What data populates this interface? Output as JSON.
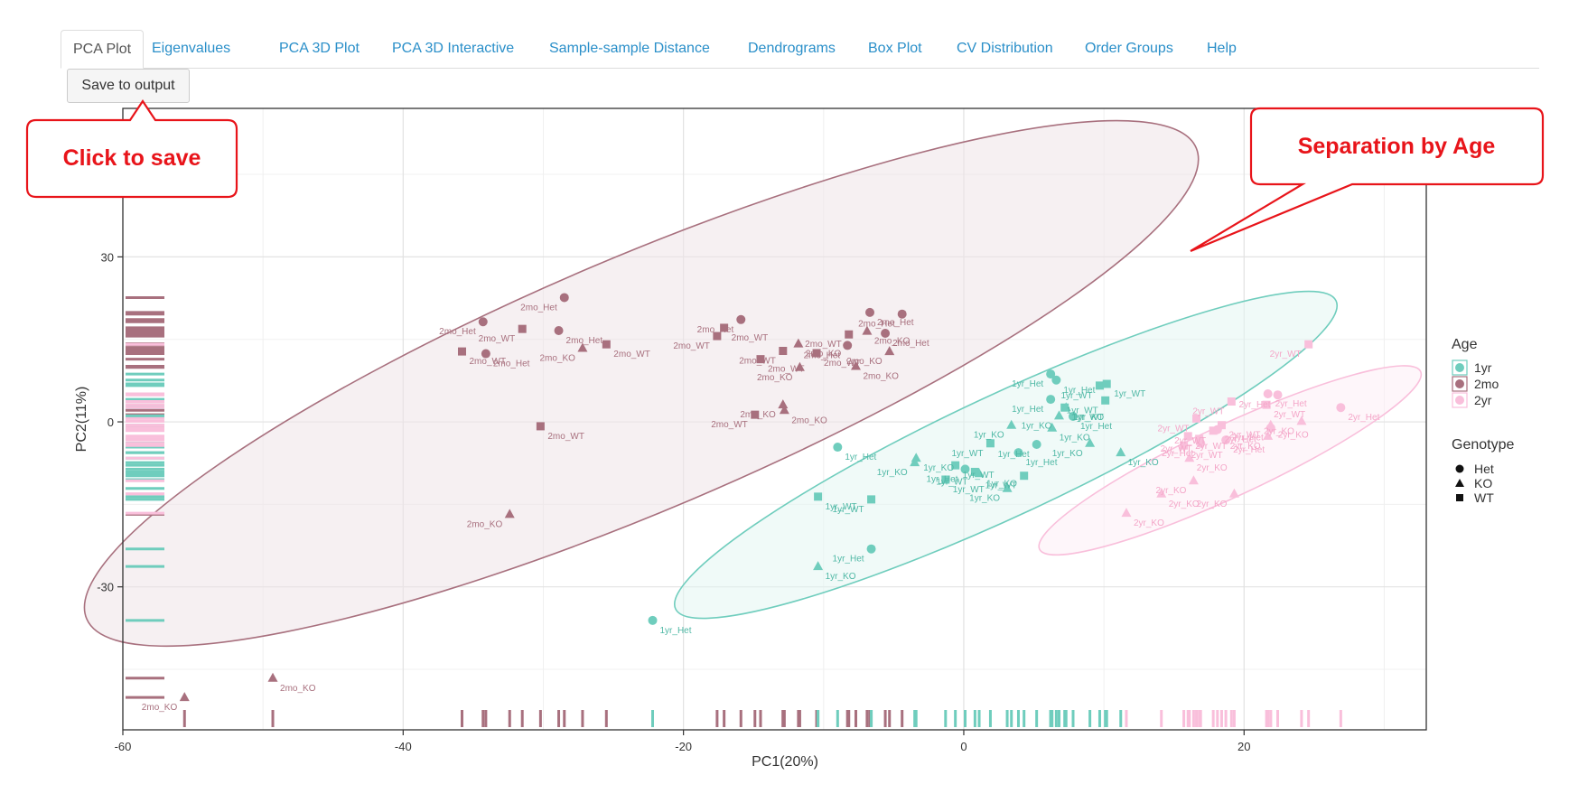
{
  "tabs": [
    {
      "label": "PCA Plot",
      "active": true
    },
    {
      "label": "Eigenvalues"
    },
    {
      "label": "PCA 3D Plot"
    },
    {
      "label": "PCA 3D Interactive"
    },
    {
      "label": "Sample-sample Distance"
    },
    {
      "label": "Dendrograms"
    },
    {
      "label": "Box Plot"
    },
    {
      "label": "CV Distribution"
    },
    {
      "label": "Order Groups"
    },
    {
      "label": "Help"
    }
  ],
  "save_button": {
    "label": "Save to output"
  },
  "callouts": {
    "save": "Click to save",
    "separation": "Separation by Age"
  },
  "colors": {
    "1yr": "#6fcdbd",
    "2mo": "#a8707e",
    "2yr": "#f9bfdb",
    "callout_border": "#e8141a",
    "callout_text": "#e8141a"
  },
  "chart_data": {
    "type": "scatter",
    "title": "",
    "xlabel": "PC1(20%)",
    "ylabel": "PC2(11%)",
    "xlim": [
      -60,
      33
    ],
    "ylim": [
      -56,
      57
    ],
    "xticks": [
      -60,
      -40,
      -20,
      0,
      20
    ],
    "yticks": [
      -30,
      0,
      30
    ],
    "grid": true,
    "legend": {
      "placement": "right",
      "age_title": "Age",
      "age_entries": [
        "1yr",
        "2mo",
        "2yr"
      ],
      "genotype_title": "Genotype",
      "genotype_entries": [
        {
          "label": "Het",
          "shape": "circle"
        },
        {
          "label": "KO",
          "shape": "triangle"
        },
        {
          "label": "WT",
          "shape": "square"
        }
      ]
    },
    "ellipses": [
      {
        "group": "2mo",
        "cx": -23,
        "cy": 7,
        "rx": 43,
        "ry": 23,
        "angle_deg": 23
      },
      {
        "group": "1yr",
        "cx": 3,
        "cy": -6,
        "rx": 26,
        "ry": 11,
        "angle_deg": 25
      },
      {
        "group": "2yr",
        "cx": 19,
        "cy": -7,
        "rx": 15,
        "ry": 6.5,
        "angle_deg": 25
      }
    ],
    "series": [
      {
        "name": "2mo",
        "points": [
          {
            "x": -34.3,
            "y": 18.2,
            "g": "Het",
            "label": "2mo_Het"
          },
          {
            "x": -34.1,
            "y": 12.4,
            "g": "Het",
            "label": "2mo_Het"
          },
          {
            "x": -28.5,
            "y": 22.6,
            "g": "Het",
            "label": "2mo_Het"
          },
          {
            "x": -28.9,
            "y": 16.6,
            "g": "Het",
            "label": "2mo_Het"
          },
          {
            "x": -15.9,
            "y": 18.6,
            "g": "Het",
            "label": "2mo_Het"
          },
          {
            "x": -6.7,
            "y": 19.9,
            "g": "Het",
            "label": "2mo_Het"
          },
          {
            "x": -4.4,
            "y": 19.6,
            "g": "Het",
            "label": "2mo_Het"
          },
          {
            "x": -5.6,
            "y": 16.1,
            "g": "Het",
            "label": "2mo_Het"
          },
          {
            "x": -8.3,
            "y": 13.9,
            "g": "Het",
            "label": "2mo_Het"
          },
          {
            "x": -35.8,
            "y": 12.8,
            "g": "WT",
            "label": "2mo_WT"
          },
          {
            "x": -31.5,
            "y": 16.9,
            "g": "WT",
            "label": "2mo_WT"
          },
          {
            "x": -25.5,
            "y": 14.1,
            "g": "WT",
            "label": "2mo_WT"
          },
          {
            "x": -17.6,
            "y": 15.6,
            "g": "WT",
            "label": "2mo_WT"
          },
          {
            "x": -17.1,
            "y": 17.1,
            "g": "WT",
            "label": "2mo_WT"
          },
          {
            "x": -12.9,
            "y": 12.9,
            "g": "WT",
            "label": "2mo_WT"
          },
          {
            "x": -14.5,
            "y": 11.4,
            "g": "WT",
            "label": "2mo_WT"
          },
          {
            "x": -8.2,
            "y": 15.9,
            "g": "WT",
            "label": "2mo_WT"
          },
          {
            "x": -10.5,
            "y": 12.5,
            "g": "WT",
            "label": "2mo_WT"
          },
          {
            "x": -14.9,
            "y": 1.3,
            "g": "WT",
            "label": "2mo_WT"
          },
          {
            "x": -30.2,
            "y": -0.8,
            "g": "WT",
            "label": "2mo_WT"
          },
          {
            "x": -27.2,
            "y": 13.4,
            "g": "KO",
            "label": "2mo_KO"
          },
          {
            "x": -11.8,
            "y": 14.2,
            "g": "KO",
            "label": "2mo_KO"
          },
          {
            "x": -11.7,
            "y": 9.9,
            "g": "KO",
            "label": "2mo_KO"
          },
          {
            "x": -6.9,
            "y": 16.5,
            "g": "KO",
            "label": "2mo_KO"
          },
          {
            "x": -5.3,
            "y": 12.8,
            "g": "KO",
            "label": "2mo_KO"
          },
          {
            "x": -7.7,
            "y": 10.1,
            "g": "KO",
            "label": "2mo_KO"
          },
          {
            "x": -12.9,
            "y": 3.1,
            "g": "KO",
            "label": "2mo_KO"
          },
          {
            "x": -12.8,
            "y": 2.1,
            "g": "KO",
            "label": "2mo_KO"
          },
          {
            "x": -32.4,
            "y": -16.8,
            "g": "KO",
            "label": "2mo_KO"
          },
          {
            "x": -49.3,
            "y": -46.6,
            "g": "KO",
            "label": "2mo_KO"
          },
          {
            "x": -55.6,
            "y": -50.1,
            "g": "KO",
            "label": "2mo_KO"
          }
        ]
      },
      {
        "name": "1yr",
        "points": [
          {
            "x": 6.2,
            "y": 8.7,
            "g": "Het",
            "label": "1yr_Het"
          },
          {
            "x": 6.6,
            "y": 7.6,
            "g": "Het",
            "label": "1yr_Het"
          },
          {
            "x": 6.2,
            "y": 4.1,
            "g": "Het",
            "label": "1yr_Het"
          },
          {
            "x": 7.8,
            "y": 1.0,
            "g": "Het",
            "label": "1yr_Het"
          },
          {
            "x": 5.2,
            "y": -4.1,
            "g": "Het",
            "label": "1yr_Het"
          },
          {
            "x": 3.9,
            "y": -5.6,
            "g": "Het",
            "label": "1yr_Het"
          },
          {
            "x": 0.1,
            "y": -8.6,
            "g": "Het",
            "label": "1yr_Het"
          },
          {
            "x": -9.0,
            "y": -4.6,
            "g": "Het",
            "label": "1yr_Het"
          },
          {
            "x": -6.6,
            "y": -23.1,
            "g": "Het",
            "label": "1yr_Het"
          },
          {
            "x": -22.2,
            "y": -36.1,
            "g": "Het",
            "label": "1yr_Het"
          },
          {
            "x": 9.7,
            "y": 6.6,
            "g": "WT",
            "label": "1yr_WT"
          },
          {
            "x": 10.2,
            "y": 6.9,
            "g": "WT",
            "label": "1yr_WT"
          },
          {
            "x": 10.1,
            "y": 3.9,
            "g": "WT",
            "label": "1yr_WT"
          },
          {
            "x": 7.2,
            "y": 2.6,
            "g": "WT",
            "label": "1yr_WT"
          },
          {
            "x": 1.9,
            "y": -3.9,
            "g": "WT",
            "label": "1yr_WT"
          },
          {
            "x": -0.6,
            "y": -7.9,
            "g": "WT",
            "label": "1yr_WT"
          },
          {
            "x": 0.8,
            "y": -9.1,
            "g": "WT",
            "label": "1yr_WT"
          },
          {
            "x": -1.3,
            "y": -10.5,
            "g": "WT",
            "label": "1yr_WT"
          },
          {
            "x": 4.3,
            "y": -9.8,
            "g": "WT",
            "label": "1yr_WT"
          },
          {
            "x": -10.4,
            "y": -13.6,
            "g": "WT",
            "label": "1yr_WT"
          },
          {
            "x": -6.6,
            "y": -14.1,
            "g": "WT",
            "label": "1yr_WT"
          },
          {
            "x": 7.3,
            "y": 2.6,
            "g": "KO",
            "label": "1yr_KO"
          },
          {
            "x": 6.8,
            "y": 1.1,
            "g": "KO",
            "label": "1yr_KO"
          },
          {
            "x": 6.3,
            "y": -1.1,
            "g": "KO",
            "label": "1yr_KO"
          },
          {
            "x": 9.0,
            "y": -3.9,
            "g": "KO",
            "label": "1yr_KO"
          },
          {
            "x": 11.2,
            "y": -5.6,
            "g": "KO",
            "label": "1yr_KO"
          },
          {
            "x": 3.4,
            "y": -0.6,
            "g": "KO",
            "label": "1yr_KO"
          },
          {
            "x": -3.4,
            "y": -6.6,
            "g": "KO",
            "label": "1yr_KO"
          },
          {
            "x": -3.5,
            "y": -7.4,
            "g": "KO",
            "label": "1yr_KO"
          },
          {
            "x": 1.1,
            "y": -9.4,
            "g": "KO",
            "label": "1yr_KO"
          },
          {
            "x": 3.1,
            "y": -12.1,
            "g": "KO",
            "label": "1yr_KO"
          },
          {
            "x": -10.4,
            "y": -26.3,
            "g": "KO",
            "label": "1yr_KO"
          }
        ]
      },
      {
        "name": "2yr",
        "points": [
          {
            "x": 24.6,
            "y": 14.1,
            "g": "WT",
            "label": "2yr_WT"
          },
          {
            "x": 21.7,
            "y": 5.1,
            "g": "Het",
            "label": "2yr_Het"
          },
          {
            "x": 22.4,
            "y": 4.9,
            "g": "Het",
            "label": "2yr_Het"
          },
          {
            "x": 26.9,
            "y": 2.6,
            "g": "Het",
            "label": "2yr_Het"
          },
          {
            "x": 21.9,
            "y": -1.1,
            "g": "Het",
            "label": "2yr_Het"
          },
          {
            "x": 18.7,
            "y": -3.3,
            "g": "Het",
            "label": "2yr_Het"
          },
          {
            "x": 16.9,
            "y": -3.9,
            "g": "Het",
            "label": "2yr_Het"
          },
          {
            "x": 18.1,
            "y": -1.4,
            "g": "Het",
            "label": "2yr_Het"
          },
          {
            "x": 19.1,
            "y": 3.7,
            "g": "WT",
            "label": "2yr_WT"
          },
          {
            "x": 21.6,
            "y": 3.1,
            "g": "WT",
            "label": "2yr_WT"
          },
          {
            "x": 16.6,
            "y": 0.6,
            "g": "WT",
            "label": "2yr_WT"
          },
          {
            "x": 18.4,
            "y": -0.6,
            "g": "WT",
            "label": "2yr_WT"
          },
          {
            "x": 17.8,
            "y": -1.6,
            "g": "WT",
            "label": "2yr_WT"
          },
          {
            "x": 16.0,
            "y": -2.6,
            "g": "WT",
            "label": "2yr_WT"
          },
          {
            "x": 16.8,
            "y": -3.1,
            "g": "WT",
            "label": "2yr_WT"
          },
          {
            "x": 15.7,
            "y": -4.3,
            "g": "WT",
            "label": "2yr_WT"
          },
          {
            "x": 24.1,
            "y": 0.1,
            "g": "KO",
            "label": "2yr_KO"
          },
          {
            "x": 21.9,
            "y": -0.6,
            "g": "KO",
            "label": "2yr_KO"
          },
          {
            "x": 21.7,
            "y": -2.6,
            "g": "KO",
            "label": "2yr_KO"
          },
          {
            "x": 16.1,
            "y": -6.6,
            "g": "KO",
            "label": "2yr_KO"
          },
          {
            "x": 16.4,
            "y": -10.7,
            "g": "KO",
            "label": "2yr_KO"
          },
          {
            "x": 14.1,
            "y": -13.1,
            "g": "KO",
            "label": "2yr_KO"
          },
          {
            "x": 19.3,
            "y": -13.1,
            "g": "KO",
            "label": "2yr_KO"
          },
          {
            "x": 11.6,
            "y": -16.6,
            "g": "KO",
            "label": "2yr_KO"
          }
        ]
      }
    ]
  }
}
